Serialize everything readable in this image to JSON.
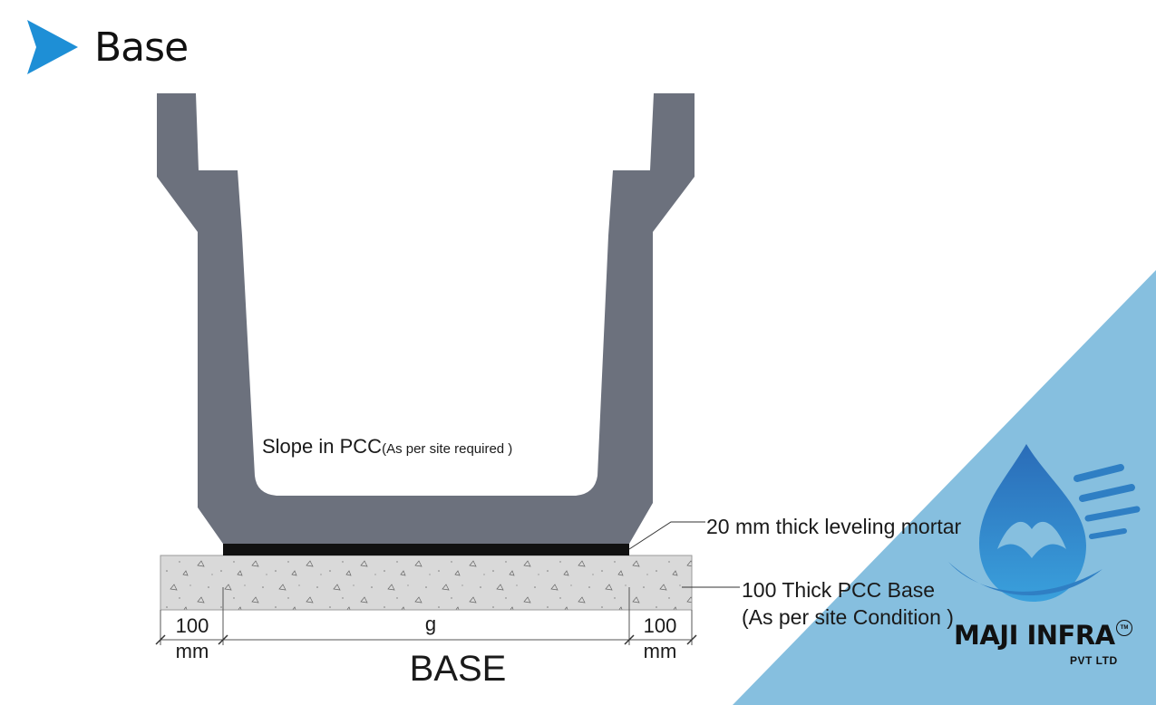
{
  "header": {
    "title": "Base",
    "arrow_color": "#1e8fd6"
  },
  "diagram": {
    "channel_color": "#6c717d",
    "mortar_color": "#111111",
    "pcc_color": "#d9d9d9",
    "labels": {
      "slope_main": "Slope in PCC",
      "slope_note": "(As per site  required )",
      "mortar": "20 mm thick leveling mortar",
      "pcc_line1": "100 Thick PCC Base",
      "pcc_line2": "(As per site Condition )"
    },
    "dimensions": {
      "left_value": "100",
      "left_unit": "mm",
      "center_value": "g",
      "right_value": "100",
      "right_unit": "mm"
    },
    "caption": "BASE"
  },
  "brand": {
    "name": "MAJI INFRA",
    "trademark": "TM",
    "subtitle": "PVT LTD",
    "accent_color": "#2f7fc4",
    "corner_color": "#86bfdf",
    "icon": "water-drop-logo-icon"
  }
}
